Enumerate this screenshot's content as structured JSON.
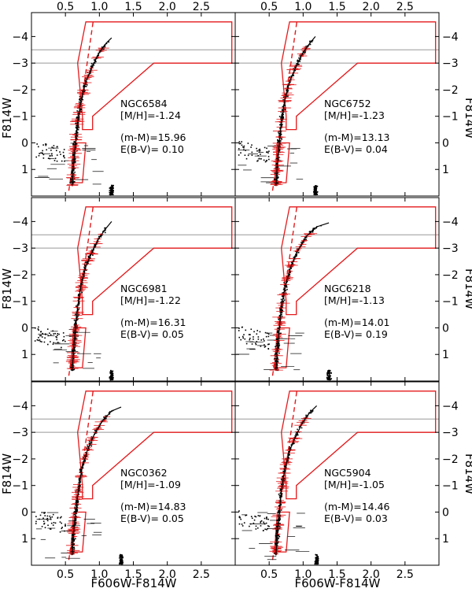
{
  "chart_data": {
    "type": "scatter",
    "description_axes": {
      "xlabel": "F606W-F814W",
      "ylabel": "F814W",
      "xlim": [
        0.0,
        3.0
      ],
      "ylim": [
        2.0,
        -4.9
      ],
      "x_ticks": [
        0.5,
        1.0,
        1.5,
        2.0,
        2.5
      ],
      "x_tick_labels": [
        "0.5",
        "1.0",
        "1.5",
        "2.0",
        "2.5"
      ],
      "y_ticks": [
        -4,
        -3,
        -2,
        -1,
        0,
        1
      ],
      "y_tick_labels": [
        "−4",
        "−3",
        "−2",
        "−1",
        "0",
        "1"
      ]
    },
    "reference_lines": {
      "gray_horizontal": [
        -3.5,
        -3.0
      ]
    },
    "selection_box": {
      "color": "#e41a1c",
      "polygon": [
        [
          0.8,
          -4.55
        ],
        [
          2.95,
          -4.55
        ],
        [
          2.95,
          -3.0
        ],
        [
          1.8,
          -3.0
        ],
        [
          0.9,
          -1.0
        ],
        [
          0.9,
          -0.5
        ],
        [
          0.75,
          -0.5
        ],
        [
          0.75,
          -1.0
        ],
        [
          0.73,
          -1.6
        ],
        [
          0.68,
          -3.0
        ]
      ],
      "lower_box": [
        [
          0.58,
          1.5
        ],
        [
          0.75,
          1.5
        ],
        [
          0.8,
          0.0
        ],
        [
          0.62,
          0.0
        ]
      ]
    },
    "panels": [
      {
        "name": "NGC6584",
        "mh": "[M/H]=-1.24",
        "dm": "(m-M)=15.96",
        "ebv": "E(B-V)= 0.10",
        "isochrone": [
          [
            0.6,
            1.6
          ],
          [
            0.62,
            0.8
          ],
          [
            0.65,
            0.0
          ],
          [
            0.68,
            -0.8
          ],
          [
            0.73,
            -1.6
          ],
          [
            0.8,
            -2.3
          ],
          [
            0.9,
            -2.9
          ],
          [
            1.0,
            -3.4
          ],
          [
            1.1,
            -3.75
          ],
          [
            1.18,
            -3.95
          ]
        ],
        "guide": [
          [
            0.55,
            1.8
          ],
          [
            0.91,
            -4.6
          ]
        ]
      },
      {
        "name": "NGC6752",
        "mh": "[M/H]=-1.23",
        "dm": "(m-M)=13.13",
        "ebv": "E(B-V)= 0.04",
        "isochrone": [
          [
            0.6,
            1.6
          ],
          [
            0.62,
            0.8
          ],
          [
            0.65,
            0.0
          ],
          [
            0.68,
            -0.8
          ],
          [
            0.73,
            -1.6
          ],
          [
            0.8,
            -2.3
          ],
          [
            0.9,
            -2.9
          ],
          [
            1.0,
            -3.4
          ],
          [
            1.1,
            -3.75
          ],
          [
            1.18,
            -4.0
          ]
        ],
        "guide": [
          [
            0.55,
            1.8
          ],
          [
            0.91,
            -4.6
          ]
        ]
      },
      {
        "name": "NGC6981",
        "mh": "[M/H]=-1.22",
        "dm": "(m-M)=16.31",
        "ebv": "E(B-V)= 0.05",
        "isochrone": [
          [
            0.6,
            1.6
          ],
          [
            0.62,
            0.8
          ],
          [
            0.65,
            0.0
          ],
          [
            0.68,
            -0.8
          ],
          [
            0.73,
            -1.6
          ],
          [
            0.8,
            -2.3
          ],
          [
            0.9,
            -2.9
          ],
          [
            1.0,
            -3.4
          ],
          [
            1.1,
            -3.75
          ],
          [
            1.18,
            -4.0
          ]
        ],
        "guide": [
          [
            0.55,
            1.8
          ],
          [
            0.91,
            -4.6
          ]
        ]
      },
      {
        "name": "NGC6218",
        "mh": "[M/H]=-1.13",
        "dm": "(m-M)=14.01",
        "ebv": "E(B-V)= 0.19",
        "isochrone": [
          [
            0.6,
            1.6
          ],
          [
            0.62,
            0.8
          ],
          [
            0.65,
            0.0
          ],
          [
            0.68,
            -0.8
          ],
          [
            0.74,
            -1.6
          ],
          [
            0.82,
            -2.3
          ],
          [
            0.92,
            -2.9
          ],
          [
            1.05,
            -3.45
          ],
          [
            1.2,
            -3.8
          ],
          [
            1.38,
            -3.95
          ]
        ],
        "guide": [
          [
            0.55,
            1.8
          ],
          [
            0.91,
            -4.6
          ]
        ]
      },
      {
        "name": "NGC0362",
        "mh": "[M/H]=-1.09",
        "dm": "(m-M)=14.83",
        "ebv": "E(B-V)= 0.05",
        "isochrone": [
          [
            0.6,
            1.6
          ],
          [
            0.62,
            0.8
          ],
          [
            0.65,
            0.0
          ],
          [
            0.69,
            -0.8
          ],
          [
            0.74,
            -1.6
          ],
          [
            0.82,
            -2.3
          ],
          [
            0.92,
            -2.9
          ],
          [
            1.05,
            -3.45
          ],
          [
            1.18,
            -3.8
          ],
          [
            1.32,
            -3.95
          ]
        ],
        "guide": [
          [
            0.55,
            1.8
          ],
          [
            0.91,
            -4.6
          ]
        ]
      },
      {
        "name": "NGC5904",
        "mh": "[M/H]=-1.05",
        "dm": "(m-M)=14.46",
        "ebv": "E(B-V)= 0.03",
        "isochrone": [
          [
            0.6,
            1.6
          ],
          [
            0.62,
            0.8
          ],
          [
            0.65,
            0.0
          ],
          [
            0.68,
            -0.8
          ],
          [
            0.73,
            -1.6
          ],
          [
            0.8,
            -2.3
          ],
          [
            0.9,
            -2.9
          ],
          [
            1.0,
            -3.4
          ],
          [
            1.1,
            -3.75
          ],
          [
            1.2,
            -4.0
          ]
        ],
        "guide": [
          [
            0.55,
            1.8
          ],
          [
            0.91,
            -4.6
          ]
        ]
      }
    ]
  }
}
